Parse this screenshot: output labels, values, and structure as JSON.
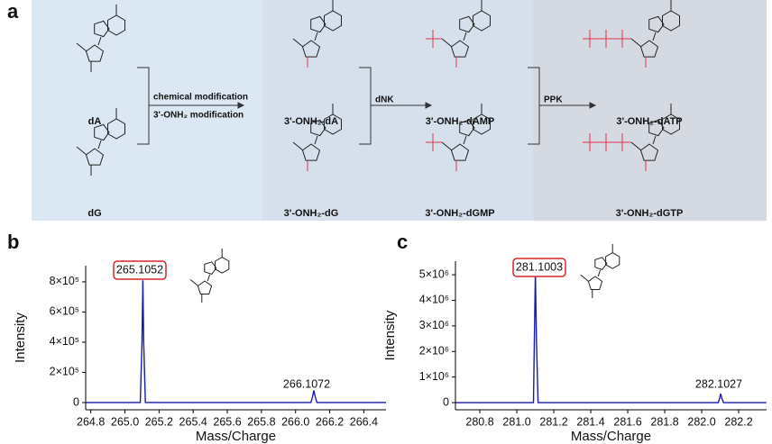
{
  "panel_labels": [
    "a",
    "b",
    "c"
  ],
  "scheme": {
    "compounds": [
      "dA",
      "3'-ONH₂-dA",
      "3'-ONH₂-dAMP",
      "3'-ONH₂-dATP",
      "dG",
      "3'-ONH₂-dG",
      "3'-ONH₂-dGMP",
      "3'-ONH₂-dGTP"
    ],
    "steps": [
      {
        "labels": [
          "chemical modification",
          "3'-ONH₂ modification"
        ],
        "color": "#2f3bb5"
      },
      {
        "labels": [
          "dNK"
        ],
        "color": "#a53cc8"
      },
      {
        "labels": [
          "PPK"
        ],
        "color": "#a53cc8"
      }
    ]
  },
  "chart_data": [
    {
      "type": "line",
      "x_label": "Mass/Charge",
      "y_label": "Intensity",
      "x": [
        264.77,
        265.09,
        265.1,
        265.1052,
        265.11,
        265.12,
        266.09,
        266.1,
        266.1072,
        266.115,
        266.125,
        266.53
      ],
      "series": [
        {
          "name": "dA",
          "color": "#1a1aa8",
          "values": [
            0,
            0,
            400000,
            810000,
            400000,
            0,
            0,
            40000,
            80000,
            40000,
            0,
            0
          ]
        }
      ],
      "xlim": [
        264.77,
        266.53
      ],
      "ylim": [
        -48000,
        907000
      ],
      "xticks": [
        264.8,
        {
          "value": 265,
          "label": "265.0"
        },
        265.2,
        265.4,
        265.6,
        265.8,
        {
          "value": 266,
          "label": "266.0"
        },
        266.2,
        266.4
      ],
      "yticks": [
        0,
        {
          "value": 200000,
          "label": "2×10⁵"
        },
        {
          "value": 400000,
          "label": "4×10⁵"
        },
        {
          "value": 600000,
          "label": "6×10⁵"
        },
        {
          "value": 800000,
          "label": "8×10⁵"
        }
      ],
      "annotations": [
        {
          "text": "265.1052",
          "boxed": true
        },
        {
          "text": "266.1072",
          "boxed": false
        }
      ]
    },
    {
      "type": "line",
      "x_label": "Mass/Charge",
      "y_label": "Intensity",
      "x": [
        280.67,
        281.09,
        281.095,
        281.1003,
        281.106,
        281.115,
        282.09,
        282.097,
        282.1027,
        282.109,
        282.118,
        282.35
      ],
      "series": [
        {
          "name": "dG",
          "color": "#1a1aa8",
          "values": [
            0,
            0,
            2500000,
            5100000,
            2500000,
            0,
            0,
            170000,
            350000,
            170000,
            0,
            0
          ]
        }
      ],
      "xlim": [
        280.668,
        282.351
      ],
      "ylim": [
        -280000,
        5530000
      ],
      "xticks": [
        280.8,
        {
          "value": 281,
          "label": "281.0"
        },
        281.2,
        281.4,
        281.6,
        281.8,
        {
          "value": 282,
          "label": "282.0"
        },
        282.2
      ],
      "yticks": [
        0,
        {
          "value": 1000000,
          "label": "1×10⁶"
        },
        {
          "value": 2000000,
          "label": "2×10⁶"
        },
        {
          "value": 3000000,
          "label": "3×10⁶"
        },
        {
          "value": 4000000,
          "label": "4×10⁶"
        },
        {
          "value": 5000000,
          "label": "5×10⁶"
        }
      ],
      "annotations": [
        {
          "text": "281.1003",
          "boxed": true
        },
        {
          "text": "282.1027",
          "boxed": false
        }
      ]
    }
  ]
}
